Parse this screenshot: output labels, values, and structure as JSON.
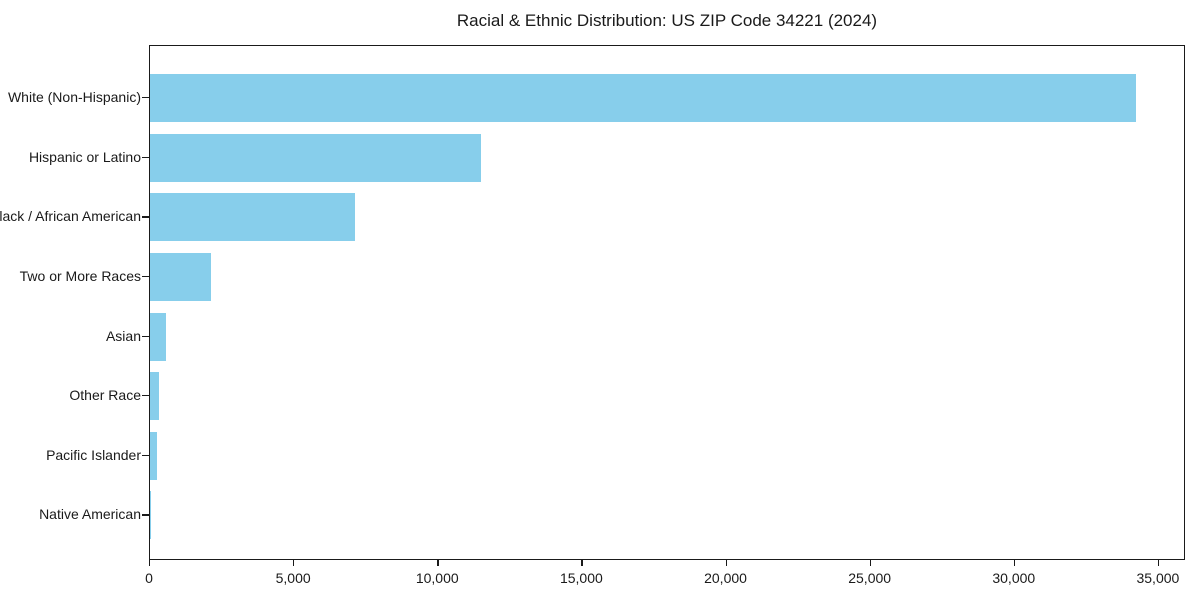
{
  "title": "Racial & Ethnic Distribution: US ZIP Code 34221 (2024)",
  "colors": {
    "bar": "#87CEEB",
    "axis": "#1a1a1a",
    "text": "#1a1a1a",
    "background": "#ffffff"
  },
  "chart_data": {
    "type": "bar",
    "orientation": "horizontal",
    "title": "Racial & Ethnic Distribution: US ZIP Code 34221 (2024)",
    "categories": [
      "White (Non-Hispanic)",
      "Hispanic or Latino",
      "Black / African American",
      "Two or More Races",
      "Asian",
      "Other Race",
      "Pacific Islander",
      "Native American"
    ],
    "values": [
      34200,
      11500,
      7100,
      2100,
      550,
      320,
      240,
      20
    ],
    "xlabel": "",
    "ylabel": "",
    "xlim": [
      0,
      35940
    ],
    "xticks": [
      0,
      5000,
      10000,
      15000,
      20000,
      25000,
      30000,
      35000
    ],
    "xtick_labels": [
      "0",
      "5,000",
      "10,000",
      "15,000",
      "20,000",
      "25,000",
      "30,000",
      "35,000"
    ],
    "grid": false,
    "legend": null,
    "bar_color": "#87CEEB"
  }
}
